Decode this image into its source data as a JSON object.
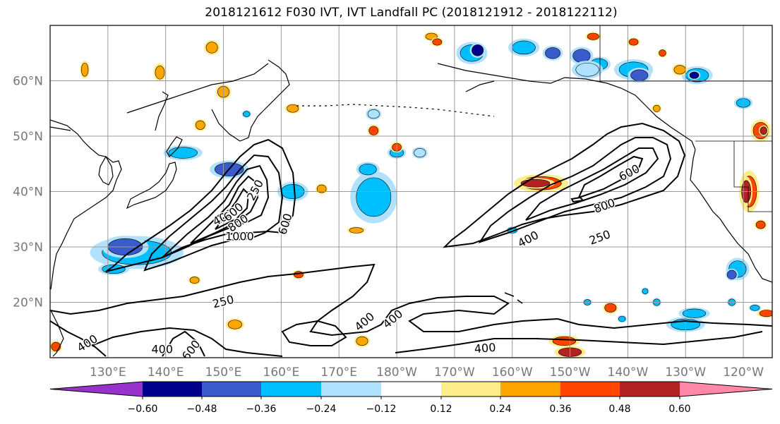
{
  "chart_data": {
    "type": "map",
    "title": "2018121612 F030 IVT, IVT Landfall PC (2018121912 - 2018122112)",
    "lon_range": [
      120,
      245
    ],
    "lat_range": [
      10,
      70
    ],
    "lon_ticks": [
      "130°E",
      "140°E",
      "150°E",
      "160°E",
      "170°E",
      "180°W",
      "170°W",
      "160°W",
      "150°W",
      "140°W",
      "130°W",
      "120°W"
    ],
    "lon_tick_values": [
      130,
      140,
      150,
      160,
      170,
      180,
      190,
      200,
      210,
      220,
      230,
      240
    ],
    "lat_ticks": [
      "20°N",
      "30°N",
      "40°N",
      "50°N",
      "60°N"
    ],
    "lat_tick_values": [
      20,
      30,
      40,
      50,
      60
    ],
    "grid": true,
    "colorbar": {
      "orientation": "horizontal",
      "extend": "both",
      "ticks": [
        "−0.60",
        "−0.48",
        "−0.36",
        "−0.24",
        "−0.12",
        "0.12",
        "0.24",
        "0.36",
        "0.48",
        "0.60"
      ],
      "colors": [
        "#9932CC",
        "#00008B",
        "#3A5BCC",
        "#00BFFF",
        "#B0E2FF",
        "#FFFFFF",
        "#FFEC8B",
        "#FFA500",
        "#FF4500",
        "#B22222",
        "#FF88A8"
      ]
    },
    "contour_levels": [
      250,
      400,
      600,
      800,
      1000
    ],
    "contour_labels": [
      {
        "text": "250",
        "lon": 155.6,
        "lat": 40.2,
        "angle": -62
      },
      {
        "text": "400",
        "lon": 150.0,
        "lat": 35.2,
        "angle": -28
      },
      {
        "text": "600",
        "lon": 151.8,
        "lat": 36.2,
        "angle": -40
      },
      {
        "text": "800",
        "lon": 152.6,
        "lat": 34.2,
        "angle": -34
      },
      {
        "text": "1000",
        "lon": 152.8,
        "lat": 31.8,
        "angle": 0
      },
      {
        "text": "600",
        "lon": 160.8,
        "lat": 34.1,
        "angle": -72
      },
      {
        "text": "250",
        "lon": 150.0,
        "lat": 20.0,
        "angle": -14
      },
      {
        "text": "400",
        "lon": 139.4,
        "lat": 11.4,
        "angle": 0
      },
      {
        "text": "600",
        "lon": 144.5,
        "lat": 11.3,
        "angle": -52
      },
      {
        "text": "400",
        "lon": 126.5,
        "lat": 12.5,
        "angle": -32
      },
      {
        "text": "400",
        "lon": 174.5,
        "lat": 16.4,
        "angle": -40
      },
      {
        "text": "400",
        "lon": 179.4,
        "lat": 16.9,
        "angle": -40
      },
      {
        "text": "400",
        "lon": 195.3,
        "lat": 11.6,
        "angle": -5
      },
      {
        "text": "600",
        "lon": 220.3,
        "lat": 43.3,
        "angle": -28
      },
      {
        "text": "800",
        "lon": 216.0,
        "lat": 37.3,
        "angle": -20
      },
      {
        "text": "250",
        "lon": 215.2,
        "lat": 31.6,
        "angle": -20
      },
      {
        "text": "400",
        "lon": 202.8,
        "lat": 31.3,
        "angle": -28
      }
    ]
  }
}
